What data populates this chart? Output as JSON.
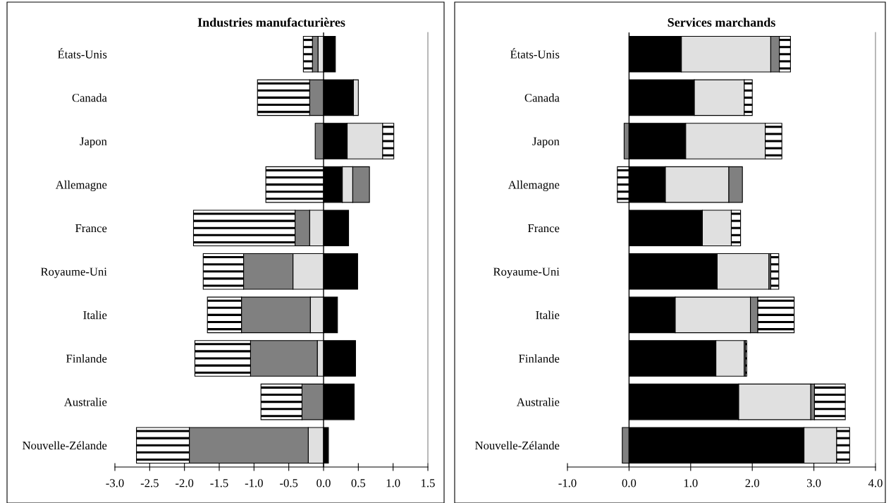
{
  "chart_data": [
    {
      "type": "bar",
      "title": "Industries manufacturières",
      "orientation": "horizontal",
      "stacked": true,
      "categories": [
        "États-Unis",
        "Canada",
        "Japon",
        "Allemagne",
        "France",
        "Royaume-Uni",
        "Italie",
        "Finlande",
        "Australie",
        "Nouvelle-Zélande"
      ],
      "series": [
        {
          "color": "#000000",
          "values": [
            0.17,
            0.43,
            0.34,
            0.27,
            0.36,
            0.49,
            0.2,
            0.46,
            0.44,
            0.07
          ]
        },
        {
          "color": "#e0e0e0",
          "values": [
            -0.08,
            0.07,
            0.51,
            0.15,
            -0.2,
            -0.44,
            -0.19,
            -0.09,
            null,
            -0.22
          ]
        },
        {
          "color": "#808080",
          "values": [
            -0.08,
            -0.2,
            -0.12,
            0.24,
            -0.21,
            -0.71,
            -0.99,
            -0.96,
            -0.31,
            -1.71
          ]
        },
        {
          "color": "#ffffff",
          "values": [
            -0.13,
            -0.75,
            0.16,
            -0.83,
            -1.46,
            -0.58,
            -0.49,
            -0.8,
            -0.59,
            -0.76
          ]
        }
      ],
      "xlim": [
        -3.0,
        1.5
      ],
      "xticks": [
        {
          "value": -3.0,
          "label": "-3.0"
        },
        {
          "value": -2.5,
          "label": "-2.5"
        },
        {
          "value": -2.0,
          "label": "-2.0"
        },
        {
          "value": -1.5,
          "label": "-1.5"
        },
        {
          "value": -1.0,
          "label": "-1.0"
        },
        {
          "value": -0.5,
          "label": "-0.5"
        },
        {
          "value": 0,
          "label": "0.0"
        },
        {
          "value": 0.5,
          "label": "0.5"
        },
        {
          "value": 1.0,
          "label": "1.0"
        },
        {
          "value": 1.5,
          "label": "1.5"
        }
      ]
    },
    {
      "type": "bar",
      "title": "Services marchands",
      "orientation": "horizontal",
      "stacked": true,
      "categories": [
        "États-Unis",
        "Canada",
        "Japon",
        "Allemagne",
        "France",
        "Royaume-Uni",
        "Italie",
        "Finlande",
        "Australie",
        "Nouvelle-Zélande"
      ],
      "series": [
        {
          "color": "#000000",
          "values": [
            0.85,
            1.06,
            0.92,
            0.59,
            1.19,
            1.43,
            0.75,
            1.41,
            1.78,
            2.84
          ]
        },
        {
          "color": "#e0e0e0",
          "values": [
            1.45,
            0.81,
            1.29,
            1.03,
            0.47,
            0.84,
            1.22,
            0.46,
            1.17,
            0.53
          ]
        },
        {
          "color": "#808080",
          "values": [
            0.14,
            null,
            -0.08,
            0.22,
            null,
            0.03,
            0.12,
            0.02,
            0.06,
            -0.11
          ]
        },
        {
          "color": "#ffffff",
          "values": [
            0.18,
            0.13,
            0.27,
            -0.19,
            0.15,
            0.13,
            0.59,
            0.02,
            0.5,
            0.21
          ]
        }
      ],
      "xlim": [
        -1.0,
        4.0
      ],
      "xticks": [
        {
          "value": -1.0,
          "label": "-1.0"
        },
        {
          "value": 0,
          "label": "0.0"
        },
        {
          "value": 1.0,
          "label": "1.0"
        },
        {
          "value": 2.0,
          "label": "2.0"
        },
        {
          "value": 3.0,
          "label": "3.0"
        },
        {
          "value": 4.0,
          "label": "4.0"
        }
      ]
    }
  ]
}
